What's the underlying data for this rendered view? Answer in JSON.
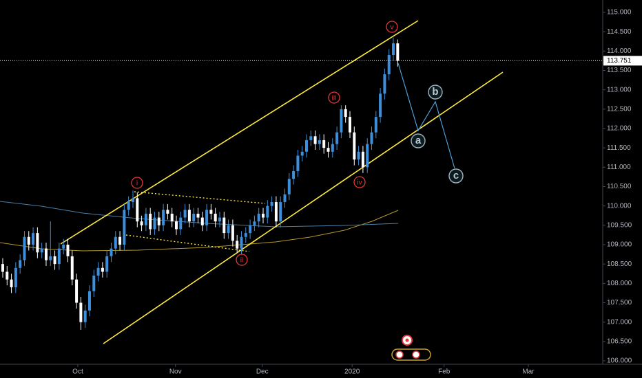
{
  "chart_data": {
    "type": "candlestick",
    "categories": [
      null,
      null,
      null,
      null,
      null,
      null,
      null,
      null,
      null,
      null,
      null,
      null,
      null,
      null,
      null,
      null,
      null,
      null,
      null,
      null,
      null,
      null,
      null,
      null,
      null,
      null,
      null,
      null,
      null,
      null,
      null,
      null,
      null,
      null,
      null,
      null,
      null,
      null,
      null,
      null,
      null,
      null,
      null,
      null,
      null,
      null,
      null,
      null,
      null,
      null,
      null,
      null,
      null,
      null,
      null,
      null,
      null,
      null,
      null,
      null,
      null,
      null,
      null,
      null,
      null,
      null,
      null,
      null,
      null,
      null,
      null,
      null,
      null,
      null,
      null,
      null,
      null,
      null,
      null,
      null,
      null,
      null,
      null,
      null,
      null,
      null,
      null,
      null,
      null,
      null,
      null,
      null
    ],
    "open": [
      108.5,
      108.3,
      108.1,
      107.9,
      108.4,
      108.6,
      109.2,
      109.0,
      109.3,
      108.8,
      108.9,
      108.6,
      108.7,
      108.5,
      108.9,
      109.0,
      108.7,
      108.1,
      107.5,
      107.0,
      107.3,
      107.8,
      108.2,
      108.4,
      108.3,
      108.7,
      108.9,
      109.2,
      109.0,
      109.9,
      110.1,
      110.2,
      109.6,
      109.5,
      109.8,
      109.4,
      109.7,
      109.5,
      109.9,
      109.8,
      109.6,
      109.4,
      109.7,
      109.9,
      109.6,
      109.8,
      109.7,
      109.5,
      109.9,
      109.8,
      109.6,
      109.7,
      109.3,
      109.5,
      109.1,
      108.9,
      109.2,
      109.3,
      109.5,
      109.6,
      109.8,
      109.7,
      110.0,
      110.1,
      109.6,
      110.1,
      110.3,
      110.7,
      110.9,
      111.3,
      111.4,
      111.7,
      111.8,
      111.6,
      111.7,
      111.5,
      111.4,
      111.6,
      111.9,
      112.5,
      112.3,
      111.9,
      111.2,
      111.4,
      111.0,
      111.6,
      111.9,
      112.3,
      112.9,
      113.4,
      113.9,
      114.2
    ],
    "high": [
      108.65,
      108.45,
      108.25,
      108.55,
      108.75,
      109.35,
      109.35,
      109.45,
      109.45,
      109.05,
      109.05,
      109.6,
      108.85,
      109.05,
      109.15,
      109.15,
      108.85,
      108.25,
      107.65,
      107.45,
      107.95,
      108.35,
      108.55,
      108.55,
      108.85,
      109.05,
      109.35,
      109.35,
      110.05,
      110.25,
      110.4,
      110.35,
      109.75,
      109.95,
      109.95,
      109.85,
      109.85,
      110.05,
      110.05,
      109.95,
      109.75,
      109.85,
      110.05,
      110.05,
      109.95,
      109.95,
      109.85,
      110.05,
      110.05,
      109.95,
      109.85,
      109.85,
      109.65,
      109.65,
      109.25,
      109.35,
      109.45,
      109.65,
      109.75,
      109.95,
      109.95,
      110.15,
      110.25,
      110.25,
      110.25,
      110.45,
      110.85,
      111.05,
      111.45,
      111.55,
      111.85,
      111.95,
      111.95,
      111.85,
      111.85,
      111.65,
      111.75,
      112.05,
      112.6,
      112.6,
      112.45,
      112.05,
      111.55,
      111.55,
      111.75,
      112.05,
      112.45,
      113.05,
      113.55,
      114.05,
      114.35,
      114.3
    ],
    "low": [
      108.15,
      107.95,
      107.75,
      107.75,
      108.25,
      108.45,
      108.85,
      108.85,
      108.65,
      108.65,
      108.45,
      108.45,
      108.35,
      108.35,
      108.75,
      108.55,
      107.95,
      107.35,
      106.8,
      106.85,
      107.15,
      107.65,
      108.05,
      108.15,
      108.15,
      108.55,
      108.75,
      108.85,
      108.85,
      109.75,
      109.95,
      109.45,
      109.35,
      109.35,
      109.25,
      109.25,
      109.35,
      109.35,
      109.65,
      109.45,
      109.25,
      109.25,
      109.55,
      109.45,
      109.45,
      109.55,
      109.35,
      109.35,
      109.65,
      109.45,
      109.45,
      109.15,
      109.15,
      108.95,
      108.8,
      108.75,
      109.05,
      109.15,
      109.35,
      109.45,
      109.55,
      109.55,
      109.85,
      109.45,
      109.45,
      109.95,
      110.15,
      110.55,
      110.75,
      111.15,
      111.25,
      111.55,
      111.45,
      111.45,
      111.35,
      111.25,
      111.25,
      111.45,
      111.75,
      112.15,
      111.75,
      111.05,
      111.05,
      110.85,
      110.85,
      111.45,
      111.75,
      112.15,
      112.75,
      113.25,
      113.75,
      113.6
    ],
    "close": [
      108.3,
      108.1,
      107.9,
      108.4,
      108.6,
      109.2,
      109.0,
      109.3,
      108.8,
      108.9,
      108.6,
      108.7,
      108.5,
      108.9,
      109.0,
      108.7,
      108.1,
      107.5,
      107.0,
      107.3,
      107.8,
      108.2,
      108.4,
      108.3,
      108.7,
      108.9,
      109.2,
      109.0,
      109.9,
      110.1,
      110.2,
      109.6,
      109.5,
      109.8,
      109.4,
      109.7,
      109.5,
      109.9,
      109.8,
      109.6,
      109.4,
      109.7,
      109.9,
      109.6,
      109.8,
      109.7,
      109.5,
      109.9,
      109.8,
      109.6,
      109.7,
      109.3,
      109.5,
      109.1,
      108.9,
      109.2,
      109.3,
      109.5,
      109.6,
      109.8,
      109.7,
      110.0,
      110.1,
      109.6,
      110.1,
      110.3,
      110.7,
      110.9,
      111.3,
      111.4,
      111.7,
      111.8,
      111.6,
      111.7,
      111.5,
      111.4,
      111.6,
      111.9,
      112.5,
      112.3,
      111.9,
      111.2,
      111.4,
      111.0,
      111.6,
      111.9,
      112.3,
      112.9,
      113.4,
      113.9,
      114.2,
      113.75
    ],
    "up_color": "#3d8fdb",
    "down_color": "#ffffff",
    "ylim": [
      106.0,
      115.0
    ],
    "yticks": [
      {
        "value": 106.0,
        "label": "106.000"
      },
      {
        "value": 106.5,
        "label": "106.500"
      },
      {
        "value": 107.0,
        "label": "107.000"
      },
      {
        "value": 107.5,
        "label": "107.500"
      },
      {
        "value": 108.0,
        "label": "108.000"
      },
      {
        "value": 108.5,
        "label": "108.500"
      },
      {
        "value": 109.0,
        "label": "109.000"
      },
      {
        "value": 109.5,
        "label": "109.500"
      },
      {
        "value": 110.0,
        "label": "110.000"
      },
      {
        "value": 110.5,
        "label": "110.500"
      },
      {
        "value": 111.0,
        "label": "111.000"
      },
      {
        "value": 111.5,
        "label": "111.500"
      },
      {
        "value": 112.0,
        "label": "112.000"
      },
      {
        "value": 112.5,
        "label": "112.500"
      },
      {
        "value": 113.0,
        "label": "113.000"
      },
      {
        "value": 113.5,
        "label": "113.500"
      },
      {
        "value": 114.0,
        "label": "114.000"
      },
      {
        "value": 114.5,
        "label": "114.500"
      },
      {
        "value": 115.0,
        "label": "115.000"
      }
    ],
    "xlim": [
      -0.63,
      138.25
    ],
    "xticks": [
      {
        "value": 17.3,
        "label": "Oct"
      },
      {
        "value": 39.8,
        "label": "Nov"
      },
      {
        "value": 59.8,
        "label": "Dec"
      },
      {
        "value": 80.5,
        "label": "2020"
      },
      {
        "value": 101.7,
        "label": "Feb"
      },
      {
        "value": 121.1,
        "label": "Mar"
      }
    ],
    "last_price": 113.751,
    "wave_labels": [
      "i",
      "ii",
      "iii",
      "iv",
      "v"
    ],
    "projection_labels": [
      "a",
      "b",
      "c"
    ]
  }
}
